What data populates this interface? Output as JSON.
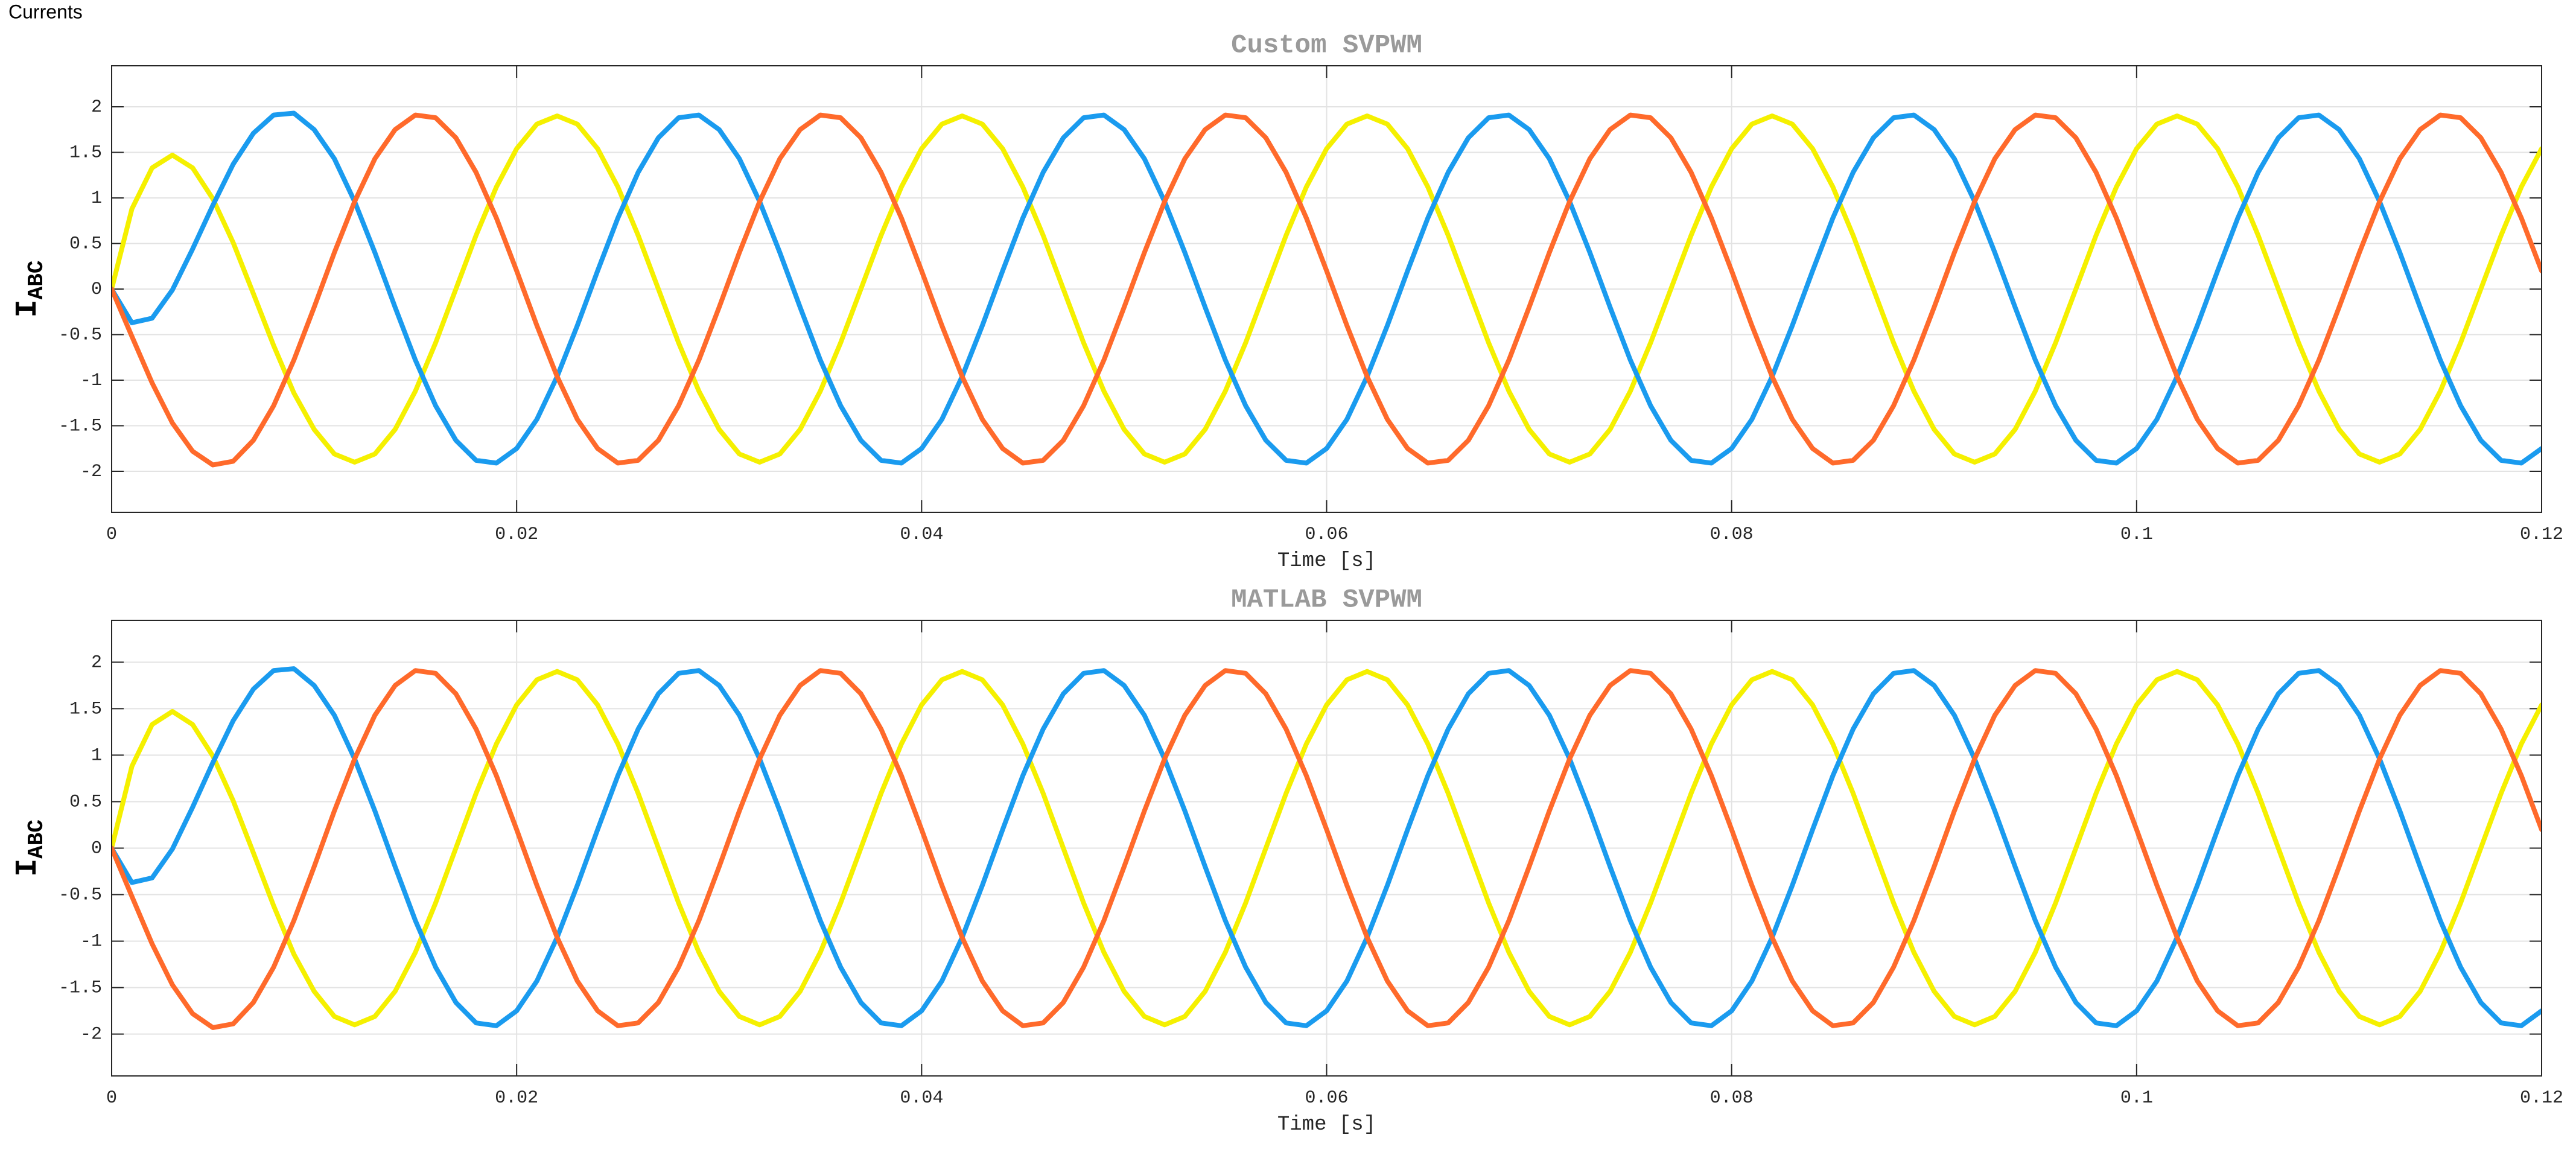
{
  "window_title": "Currents",
  "chart_data": [
    {
      "type": "line",
      "title": "Custom SVPWM",
      "xlabel": "Time [s]",
      "ylabel": "I",
      "ylabel_subscript": "ABC",
      "xlim": [
        0,
        0.12
      ],
      "xticks": [
        0,
        0.02,
        0.04,
        0.06,
        0.08,
        0.1,
        0.12
      ],
      "ylim": [
        -2.45,
        2.45
      ],
      "yticks": [
        -2,
        -1.5,
        -1,
        -0.5,
        0,
        0.5,
        1,
        1.5,
        2
      ],
      "grid": true,
      "x": [
        0,
        0.001,
        0.002,
        0.003,
        0.004,
        0.005,
        0.006,
        0.007,
        0.008,
        0.009,
        0.01,
        0.011,
        0.012,
        0.013,
        0.014,
        0.015,
        0.016,
        0.017,
        0.018,
        0.019,
        0.02,
        0.021,
        0.022,
        0.023,
        0.024,
        0.025,
        0.026,
        0.027,
        0.028,
        0.029,
        0.03,
        0.031,
        0.032,
        0.033,
        0.034,
        0.035,
        0.036,
        0.037,
        0.038,
        0.039,
        0.04,
        0.041,
        0.042,
        0.043,
        0.044,
        0.045,
        0.046,
        0.047,
        0.048,
        0.049,
        0.05,
        0.051,
        0.052,
        0.053,
        0.054,
        0.055,
        0.056,
        0.057,
        0.058,
        0.059,
        0.06,
        0.061,
        0.062,
        0.063,
        0.064,
        0.065,
        0.066,
        0.067,
        0.068,
        0.069,
        0.07,
        0.071,
        0.072,
        0.073,
        0.074,
        0.075,
        0.076,
        0.077,
        0.078,
        0.079,
        0.08,
        0.081,
        0.082,
        0.083,
        0.084,
        0.085,
        0.086,
        0.087,
        0.088,
        0.089,
        0.09,
        0.091,
        0.092,
        0.093,
        0.094,
        0.095,
        0.096,
        0.097,
        0.098,
        0.099,
        0.1,
        0.101,
        0.102,
        0.103,
        0.104,
        0.105,
        0.106,
        0.107,
        0.108,
        0.109,
        0.11,
        0.111,
        0.112,
        0.113,
        0.114,
        0.115,
        0.116,
        0.117,
        0.118,
        0.119,
        0.12
      ],
      "series": [
        {
          "color": "#f5f000",
          "values": [
            0,
            0.88,
            1.33,
            1.47,
            1.33,
            0.99,
            0.51,
            -0.05,
            -0.62,
            -1.14,
            -1.54,
            -1.81,
            -1.9,
            -1.81,
            -1.54,
            -1.12,
            -0.59,
            0,
            0.59,
            1.12,
            1.54,
            1.81,
            1.9,
            1.81,
            1.54,
            1.12,
            0.59,
            0,
            -0.59,
            -1.12,
            -1.54,
            -1.81,
            -1.9,
            -1.81,
            -1.54,
            -1.12,
            -0.59,
            0,
            0.59,
            1.12,
            1.54,
            1.81,
            1.9,
            1.81,
            1.54,
            1.12,
            0.59,
            0,
            -0.59,
            -1.12,
            -1.54,
            -1.81,
            -1.9,
            -1.81,
            -1.54,
            -1.12,
            -0.59,
            0,
            0.59,
            1.12,
            1.54,
            1.81,
            1.9,
            1.81,
            1.54,
            1.12,
            0.59,
            0,
            -0.59,
            -1.12,
            -1.54,
            -1.81,
            -1.9,
            -1.81,
            -1.54,
            -1.12,
            -0.59,
            0,
            0.59,
            1.12,
            1.54,
            1.81,
            1.9,
            1.81,
            1.54,
            1.12,
            0.59,
            0,
            -0.59,
            -1.12,
            -1.54,
            -1.81,
            -1.9,
            -1.81,
            -1.54,
            -1.12,
            -0.59,
            0,
            0.59,
            1.12,
            1.54,
            1.81,
            1.9,
            1.81,
            1.54,
            1.12,
            0.59,
            0,
            -0.59,
            -1.12,
            -1.54,
            -1.81,
            -1.9,
            -1.81,
            -1.54,
            -1.12,
            -0.59,
            0,
            0.59,
            1.12,
            1.54
          ]
        },
        {
          "color": "#1a9bef",
          "values": [
            0,
            -0.37,
            -0.32,
            -0.01,
            0.44,
            0.92,
            1.37,
            1.71,
            1.91,
            1.93,
            1.75,
            1.43,
            0.96,
            0.4,
            -0.2,
            -0.78,
            -1.28,
            -1.66,
            -1.88,
            -1.91,
            -1.75,
            -1.43,
            -0.96,
            -0.4,
            0.2,
            0.78,
            1.28,
            1.66,
            1.88,
            1.91,
            1.75,
            1.43,
            0.96,
            0.4,
            -0.2,
            -0.78,
            -1.28,
            -1.66,
            -1.88,
            -1.91,
            -1.75,
            -1.43,
            -0.96,
            -0.4,
            0.2,
            0.78,
            1.28,
            1.66,
            1.88,
            1.91,
            1.75,
            1.43,
            0.96,
            0.4,
            -0.2,
            -0.78,
            -1.28,
            -1.66,
            -1.88,
            -1.91,
            -1.75,
            -1.43,
            -0.96,
            -0.4,
            0.2,
            0.78,
            1.28,
            1.66,
            1.88,
            1.91,
            1.75,
            1.43,
            0.96,
            0.4,
            -0.2,
            -0.78,
            -1.28,
            -1.66,
            -1.88,
            -1.91,
            -1.75,
            -1.43,
            -0.96,
            -0.4,
            0.2,
            0.78,
            1.28,
            1.66,
            1.88,
            1.91,
            1.75,
            1.43,
            0.96,
            0.4,
            -0.2,
            -0.78,
            -1.28,
            -1.66,
            -1.88,
            -1.91,
            -1.75,
            -1.43,
            -0.96,
            -0.4,
            0.2,
            0.78,
            1.28,
            1.66,
            1.88,
            1.91,
            1.75,
            1.43,
            0.96,
            0.4,
            -0.2,
            -0.78,
            -1.28,
            -1.66,
            -1.88,
            -1.91,
            -1.75
          ]
        },
        {
          "color": "#ff6a2b",
          "values": [
            0,
            -0.52,
            -1.03,
            -1.47,
            -1.78,
            -1.93,
            -1.89,
            -1.66,
            -1.28,
            -0.78,
            -0.2,
            0.4,
            0.96,
            1.43,
            1.75,
            1.91,
            1.88,
            1.66,
            1.28,
            0.78,
            0.2,
            -0.4,
            -0.96,
            -1.43,
            -1.75,
            -1.91,
            -1.88,
            -1.66,
            -1.28,
            -0.78,
            -0.2,
            0.4,
            0.96,
            1.43,
            1.75,
            1.91,
            1.88,
            1.66,
            1.28,
            0.78,
            0.2,
            -0.4,
            -0.96,
            -1.43,
            -1.75,
            -1.91,
            -1.88,
            -1.66,
            -1.28,
            -0.78,
            -0.2,
            0.4,
            0.96,
            1.43,
            1.75,
            1.91,
            1.88,
            1.66,
            1.28,
            0.78,
            0.2,
            -0.4,
            -0.96,
            -1.43,
            -1.75,
            -1.91,
            -1.88,
            -1.66,
            -1.28,
            -0.78,
            -0.2,
            0.4,
            0.96,
            1.43,
            1.75,
            1.91,
            1.88,
            1.66,
            1.28,
            0.78,
            0.2,
            -0.4,
            -0.96,
            -1.43,
            -1.75,
            -1.91,
            -1.88,
            -1.66,
            -1.28,
            -0.78,
            -0.2,
            0.4,
            0.96,
            1.43,
            1.75,
            1.91,
            1.88,
            1.66,
            1.28,
            0.78,
            0.2,
            -0.4,
            -0.96,
            -1.43,
            -1.75,
            -1.91,
            -1.88,
            -1.66,
            -1.28,
            -0.78,
            -0.2,
            0.4,
            0.96,
            1.43,
            1.75,
            1.91,
            1.88,
            1.66,
            1.28,
            0.78,
            0.2
          ]
        }
      ]
    },
    {
      "type": "line",
      "title": "MATLAB SVPWM",
      "xlabel": "Time [s]",
      "ylabel": "I",
      "ylabel_subscript": "ABC",
      "xlim": [
        0,
        0.12
      ],
      "xticks": [
        0,
        0.02,
        0.04,
        0.06,
        0.08,
        0.1,
        0.12
      ],
      "ylim": [
        -2.45,
        2.45
      ],
      "yticks": [
        -2,
        -1.5,
        -1,
        -0.5,
        0,
        0.5,
        1,
        1.5,
        2
      ],
      "grid": true,
      "x": [
        0,
        0.001,
        0.002,
        0.003,
        0.004,
        0.005,
        0.006,
        0.007,
        0.008,
        0.009,
        0.01,
        0.011,
        0.012,
        0.013,
        0.014,
        0.015,
        0.016,
        0.017,
        0.018,
        0.019,
        0.02,
        0.021,
        0.022,
        0.023,
        0.024,
        0.025,
        0.026,
        0.027,
        0.028,
        0.029,
        0.03,
        0.031,
        0.032,
        0.033,
        0.034,
        0.035,
        0.036,
        0.037,
        0.038,
        0.039,
        0.04,
        0.041,
        0.042,
        0.043,
        0.044,
        0.045,
        0.046,
        0.047,
        0.048,
        0.049,
        0.05,
        0.051,
        0.052,
        0.053,
        0.054,
        0.055,
        0.056,
        0.057,
        0.058,
        0.059,
        0.06,
        0.061,
        0.062,
        0.063,
        0.064,
        0.065,
        0.066,
        0.067,
        0.068,
        0.069,
        0.07,
        0.071,
        0.072,
        0.073,
        0.074,
        0.075,
        0.076,
        0.077,
        0.078,
        0.079,
        0.08,
        0.081,
        0.082,
        0.083,
        0.084,
        0.085,
        0.086,
        0.087,
        0.088,
        0.089,
        0.09,
        0.091,
        0.092,
        0.093,
        0.094,
        0.095,
        0.096,
        0.097,
        0.098,
        0.099,
        0.1,
        0.101,
        0.102,
        0.103,
        0.104,
        0.105,
        0.106,
        0.107,
        0.108,
        0.109,
        0.11,
        0.111,
        0.112,
        0.113,
        0.114,
        0.115,
        0.116,
        0.117,
        0.118,
        0.119,
        0.12
      ],
      "series": [
        {
          "color": "#f5f000",
          "values": [
            0,
            0.88,
            1.33,
            1.47,
            1.33,
            0.99,
            0.51,
            -0.05,
            -0.62,
            -1.14,
            -1.54,
            -1.81,
            -1.9,
            -1.81,
            -1.54,
            -1.12,
            -0.59,
            0,
            0.59,
            1.12,
            1.54,
            1.81,
            1.9,
            1.81,
            1.54,
            1.12,
            0.59,
            0,
            -0.59,
            -1.12,
            -1.54,
            -1.81,
            -1.9,
            -1.81,
            -1.54,
            -1.12,
            -0.59,
            0,
            0.59,
            1.12,
            1.54,
            1.81,
            1.9,
            1.81,
            1.54,
            1.12,
            0.59,
            0,
            -0.59,
            -1.12,
            -1.54,
            -1.81,
            -1.9,
            -1.81,
            -1.54,
            -1.12,
            -0.59,
            0,
            0.59,
            1.12,
            1.54,
            1.81,
            1.9,
            1.81,
            1.54,
            1.12,
            0.59,
            0,
            -0.59,
            -1.12,
            -1.54,
            -1.81,
            -1.9,
            -1.81,
            -1.54,
            -1.12,
            -0.59,
            0,
            0.59,
            1.12,
            1.54,
            1.81,
            1.9,
            1.81,
            1.54,
            1.12,
            0.59,
            0,
            -0.59,
            -1.12,
            -1.54,
            -1.81,
            -1.9,
            -1.81,
            -1.54,
            -1.12,
            -0.59,
            0,
            0.59,
            1.12,
            1.54,
            1.81,
            1.9,
            1.81,
            1.54,
            1.12,
            0.59,
            0,
            -0.59,
            -1.12,
            -1.54,
            -1.81,
            -1.9,
            -1.81,
            -1.54,
            -1.12,
            -0.59,
            0,
            0.59,
            1.12,
            1.54
          ]
        },
        {
          "color": "#1a9bef",
          "values": [
            0,
            -0.37,
            -0.32,
            -0.01,
            0.44,
            0.92,
            1.37,
            1.71,
            1.91,
            1.93,
            1.75,
            1.43,
            0.96,
            0.4,
            -0.2,
            -0.78,
            -1.28,
            -1.66,
            -1.88,
            -1.91,
            -1.75,
            -1.43,
            -0.96,
            -0.4,
            0.2,
            0.78,
            1.28,
            1.66,
            1.88,
            1.91,
            1.75,
            1.43,
            0.96,
            0.4,
            -0.2,
            -0.78,
            -1.28,
            -1.66,
            -1.88,
            -1.91,
            -1.75,
            -1.43,
            -0.96,
            -0.4,
            0.2,
            0.78,
            1.28,
            1.66,
            1.88,
            1.91,
            1.75,
            1.43,
            0.96,
            0.4,
            -0.2,
            -0.78,
            -1.28,
            -1.66,
            -1.88,
            -1.91,
            -1.75,
            -1.43,
            -0.96,
            -0.4,
            0.2,
            0.78,
            1.28,
            1.66,
            1.88,
            1.91,
            1.75,
            1.43,
            0.96,
            0.4,
            -0.2,
            -0.78,
            -1.28,
            -1.66,
            -1.88,
            -1.91,
            -1.75,
            -1.43,
            -0.96,
            -0.4,
            0.2,
            0.78,
            1.28,
            1.66,
            1.88,
            1.91,
            1.75,
            1.43,
            0.96,
            0.4,
            -0.2,
            -0.78,
            -1.28,
            -1.66,
            -1.88,
            -1.91,
            -1.75,
            -1.43,
            -0.96,
            -0.4,
            0.2,
            0.78,
            1.28,
            1.66,
            1.88,
            1.91,
            1.75,
            1.43,
            0.96,
            0.4,
            -0.2,
            -0.78,
            -1.28,
            -1.66,
            -1.88,
            -1.91,
            -1.75
          ]
        },
        {
          "color": "#ff6a2b",
          "values": [
            0,
            -0.52,
            -1.03,
            -1.47,
            -1.78,
            -1.93,
            -1.89,
            -1.66,
            -1.28,
            -0.78,
            -0.2,
            0.4,
            0.96,
            1.43,
            1.75,
            1.91,
            1.88,
            1.66,
            1.28,
            0.78,
            0.2,
            -0.4,
            -0.96,
            -1.43,
            -1.75,
            -1.91,
            -1.88,
            -1.66,
            -1.28,
            -0.78,
            -0.2,
            0.4,
            0.96,
            1.43,
            1.75,
            1.91,
            1.88,
            1.66,
            1.28,
            0.78,
            0.2,
            -0.4,
            -0.96,
            -1.43,
            -1.75,
            -1.91,
            -1.88,
            -1.66,
            -1.28,
            -0.78,
            -0.2,
            0.4,
            0.96,
            1.43,
            1.75,
            1.91,
            1.88,
            1.66,
            1.28,
            0.78,
            0.2,
            -0.4,
            -0.96,
            -1.43,
            -1.75,
            -1.91,
            -1.88,
            -1.66,
            -1.28,
            -0.78,
            -0.2,
            0.4,
            0.96,
            1.43,
            1.75,
            1.91,
            1.88,
            1.66,
            1.28,
            0.78,
            0.2,
            -0.4,
            -0.96,
            -1.43,
            -1.75,
            -1.91,
            -1.88,
            -1.66,
            -1.28,
            -0.78,
            -0.2,
            0.4,
            0.96,
            1.43,
            1.75,
            1.91,
            1.88,
            1.66,
            1.28,
            0.78,
            0.2,
            -0.4,
            -0.96,
            -1.43,
            -1.75,
            -1.91,
            -1.88,
            -1.66,
            -1.28,
            -0.78,
            -0.2,
            0.4,
            0.96,
            1.43,
            1.75,
            1.91,
            1.88,
            1.66,
            1.28,
            0.78,
            0.2
          ]
        }
      ]
    }
  ]
}
